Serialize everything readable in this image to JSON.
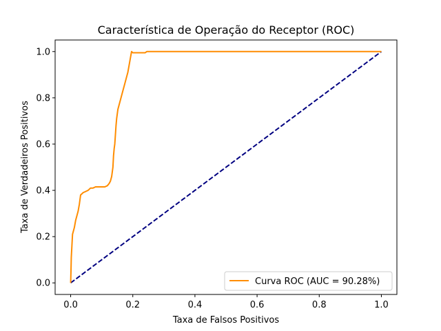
{
  "chart_data": {
    "type": "line",
    "title": "Característica de Operação do Receptor (ROC)",
    "xlabel": "Taxa de Falsos Positivos",
    "ylabel": "Taxa de Verdadeiros Positivos",
    "xlim": [
      -0.05,
      1.05
    ],
    "ylim": [
      -0.05,
      1.05
    ],
    "xticks": [
      0.0,
      0.2,
      0.4,
      0.6,
      0.8,
      1.0
    ],
    "xtick_labels": [
      "0.0",
      "0.2",
      "0.4",
      "0.6",
      "0.8",
      "1.0"
    ],
    "yticks": [
      0.0,
      0.2,
      0.4,
      0.6,
      0.8,
      1.0
    ],
    "ytick_labels": [
      "0.0",
      "0.2",
      "0.4",
      "0.6",
      "0.8",
      "1.0"
    ],
    "grid": false,
    "legend_position": "lower-right",
    "series": [
      {
        "name": "Curva ROC (AUC = 90.28%)",
        "color": "#ff8c00",
        "style": "solid",
        "x": [
          0.0,
          0.001,
          0.002,
          0.004,
          0.006,
          0.008,
          0.012,
          0.016,
          0.02,
          0.024,
          0.028,
          0.032,
          0.036,
          0.04,
          0.048,
          0.056,
          0.064,
          0.072,
          0.08,
          0.09,
          0.1,
          0.11,
          0.118,
          0.124,
          0.128,
          0.132,
          0.136,
          0.138,
          0.14,
          0.142,
          0.144,
          0.146,
          0.148,
          0.15,
          0.152,
          0.156,
          0.16,
          0.164,
          0.168,
          0.172,
          0.176,
          0.18,
          0.184,
          0.188,
          0.192,
          0.196,
          0.2,
          0.24,
          0.245,
          0.6,
          1.0
        ],
        "y": [
          0.0,
          0.05,
          0.11,
          0.16,
          0.21,
          0.22,
          0.24,
          0.27,
          0.29,
          0.31,
          0.34,
          0.38,
          0.385,
          0.39,
          0.395,
          0.4,
          0.41,
          0.41,
          0.415,
          0.415,
          0.415,
          0.415,
          0.42,
          0.43,
          0.44,
          0.46,
          0.5,
          0.55,
          0.58,
          0.6,
          0.64,
          0.68,
          0.71,
          0.73,
          0.75,
          0.77,
          0.79,
          0.81,
          0.83,
          0.85,
          0.87,
          0.89,
          0.91,
          0.94,
          0.97,
          1.0,
          0.995,
          0.995,
          1.0,
          1.0,
          1.0
        ]
      },
      {
        "name": "",
        "color": "#000080",
        "style": "dashed",
        "x": [
          0.0,
          1.0
        ],
        "y": [
          0.0,
          1.0
        ]
      }
    ]
  }
}
